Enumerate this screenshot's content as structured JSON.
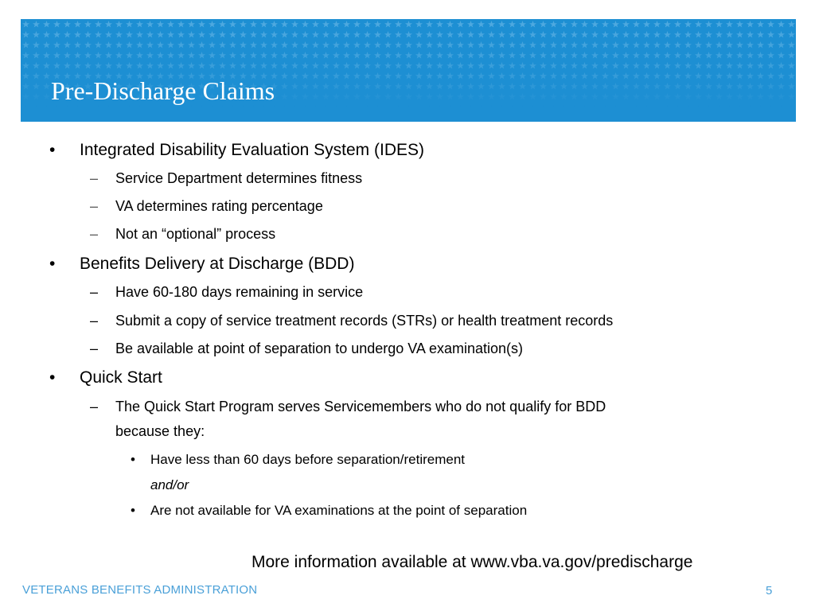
{
  "slide": {
    "title": "Pre-Discharge Claims",
    "banner_color": "#1d8fd3",
    "accent_color": "#4aa0d8"
  },
  "bullets": [
    {
      "text": "Integrated Disability Evaluation System (IDES)",
      "subitems": [
        "Service Department determines fitness",
        "VA determines rating percentage",
        "Not an “optional” process"
      ]
    },
    {
      "text": "Benefits Delivery at Discharge (BDD)",
      "subitems": [
        "Have 60-180 days remaining in service",
        "Submit a copy of service treatment records (STRs) or health treatment records",
        "Be available at point of separation to undergo VA examination(s)"
      ]
    },
    {
      "text": "Quick Start",
      "subitems": [
        "The Quick Start Program serves Servicemembers who do not qualify for BDD",
        "because they:"
      ],
      "subsubitems": [
        "Have less than 60 days before separation/retirement",
        "and/or",
        "Are not available for VA examinations at the point of separation"
      ]
    }
  ],
  "markers": {
    "bullet": "•",
    "dash": "–"
  },
  "more_info": "More information available at www.vba.va.gov/predischarge",
  "footer": {
    "organization": "VETERANS BENEFITS ADMINISTRATION",
    "page_number": "5"
  }
}
